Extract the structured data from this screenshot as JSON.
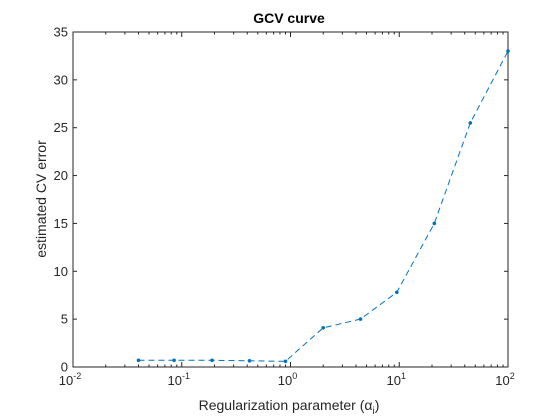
{
  "chart_data": {
    "type": "line",
    "title": "GCV curve",
    "xlabel": "Regularization parameter (",
    "xlabel_greek": "α",
    "xlabel_sub": "i",
    "xlabel_close": ")",
    "ylabel": "estimated CV error",
    "xscale": "log",
    "xlim": [
      0.01,
      100
    ],
    "ylim": [
      0,
      35
    ],
    "xticks": [
      {
        "base": "10",
        "exp": "-2"
      },
      {
        "base": "10",
        "exp": "-1"
      },
      {
        "base": "10",
        "exp": "0"
      },
      {
        "base": "10",
        "exp": "1"
      },
      {
        "base": "10",
        "exp": "2"
      }
    ],
    "yticks": [
      "0",
      "5",
      "10",
      "15",
      "20",
      "25",
      "30",
      "35"
    ],
    "grid": false,
    "line_style": "dashed",
    "marker": "dot",
    "color": "#0072BD",
    "series": [
      {
        "x": [
          0.04,
          0.085,
          0.19,
          0.42,
          0.9,
          2.0,
          4.4,
          9.5,
          21,
          45,
          100
        ],
        "y": [
          0.7,
          0.7,
          0.7,
          0.65,
          0.6,
          4.1,
          5.0,
          7.8,
          15.0,
          25.5,
          33.0
        ]
      }
    ]
  }
}
